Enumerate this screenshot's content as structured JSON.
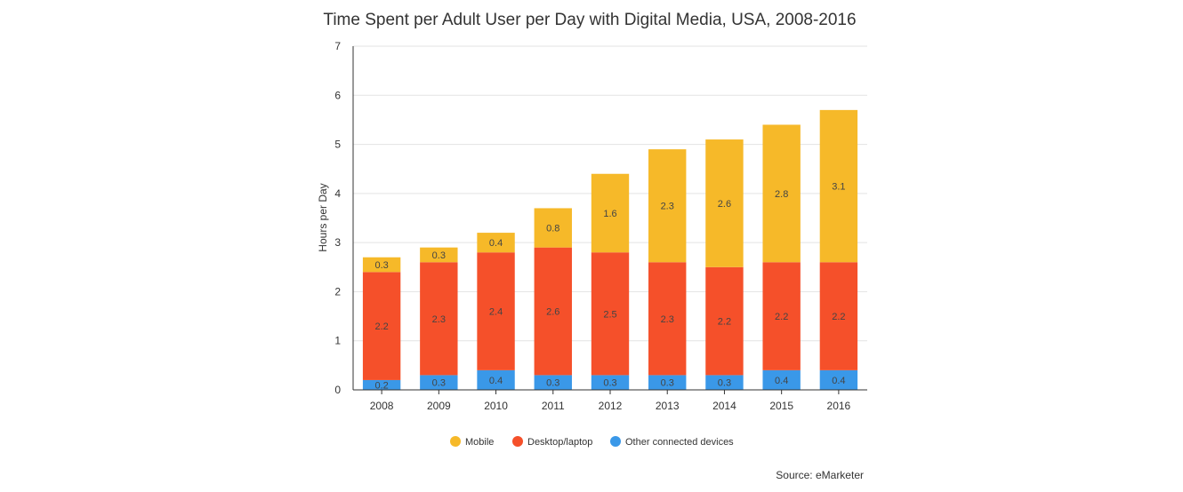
{
  "chart_data": {
    "type": "bar",
    "stacked": true,
    "title": "Time Spent per Adult User per Day with Digital Media, USA, 2008-2016",
    "xlabel": "",
    "ylabel": "Hours per Day",
    "ylim": [
      0,
      7
    ],
    "yticks": [
      "0",
      "1",
      "2",
      "3",
      "4",
      "5",
      "6",
      "7"
    ],
    "grid": true,
    "legend_position": "bottom",
    "categories": [
      "2008",
      "2009",
      "2010",
      "2011",
      "2012",
      "2013",
      "2014",
      "2015",
      "2016"
    ],
    "series": [
      {
        "name": "Other connected devices",
        "color": "#3a98e8",
        "values": [
          0.2,
          0.3,
          0.4,
          0.3,
          0.3,
          0.3,
          0.3,
          0.4,
          0.4
        ],
        "labels": [
          "0.2",
          "0.3",
          "0.4",
          "0.3",
          "0.3",
          "0.3",
          "0.3",
          "0.4",
          "0.4"
        ]
      },
      {
        "name": "Desktop/laptop",
        "color": "#f5502a",
        "values": [
          2.2,
          2.3,
          2.4,
          2.6,
          2.5,
          2.3,
          2.2,
          2.2,
          2.2
        ],
        "labels": [
          "2.2",
          "2.3",
          "2.4",
          "2.6",
          "2.5",
          "2.3",
          "2.2",
          "2.2",
          "2.2"
        ]
      },
      {
        "name": "Mobile",
        "color": "#f6b929",
        "values": [
          0.3,
          0.3,
          0.4,
          0.8,
          1.6,
          2.3,
          2.6,
          2.8,
          3.1
        ],
        "labels": [
          "0.3",
          "0.3",
          "0.4",
          "0.8",
          "1.6",
          "2.3",
          "2.6",
          "2.8",
          "3.1"
        ]
      }
    ],
    "legend_order": [
      "Mobile",
      "Desktop/laptop",
      "Other connected devices"
    ],
    "source": "Source: eMarketer"
  }
}
